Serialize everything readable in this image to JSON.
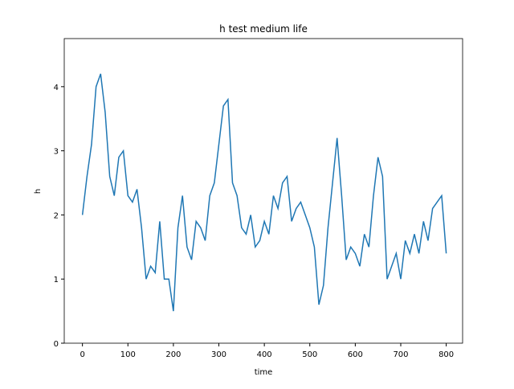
{
  "chart_data": {
    "type": "line",
    "title": "h test medium life",
    "x_label": "time",
    "y_label": "h",
    "x": [
      0,
      10,
      20,
      30,
      40,
      50,
      60,
      70,
      80,
      90,
      100,
      110,
      120,
      130,
      140,
      150,
      160,
      170,
      180,
      190,
      200,
      210,
      220,
      230,
      240,
      250,
      260,
      270,
      280,
      290,
      300,
      310,
      320,
      330,
      340,
      350,
      360,
      370,
      380,
      390,
      400,
      410,
      420,
      430,
      440,
      450,
      460,
      470,
      480,
      490,
      500,
      510,
      520,
      530,
      540,
      550,
      560,
      570,
      580,
      590,
      600,
      610,
      620,
      630,
      640,
      650,
      660,
      670,
      680,
      690,
      700,
      710,
      720,
      730,
      740,
      750,
      760,
      770,
      780,
      790,
      800
    ],
    "series": [
      {
        "name": "h",
        "color": "#1f77b4",
        "values": [
          2.0,
          2.6,
          3.1,
          4.0,
          4.2,
          3.6,
          2.6,
          2.3,
          2.9,
          3.0,
          2.3,
          2.2,
          2.4,
          1.8,
          1.0,
          1.2,
          1.1,
          1.9,
          1.0,
          1.0,
          0.5,
          1.8,
          2.3,
          1.5,
          1.3,
          1.9,
          1.8,
          1.6,
          2.3,
          2.5,
          3.1,
          3.7,
          3.8,
          2.5,
          2.3,
          1.8,
          1.7,
          2.0,
          1.5,
          1.6,
          1.9,
          1.7,
          2.3,
          2.1,
          2.5,
          2.6,
          1.9,
          2.1,
          2.2,
          2.0,
          1.8,
          1.5,
          0.6,
          0.9,
          1.8,
          2.5,
          3.2,
          2.3,
          1.3,
          1.5,
          1.4,
          1.2,
          1.7,
          1.5,
          2.3,
          2.9,
          2.6,
          1.0,
          1.2,
          1.4,
          1.0,
          1.6,
          1.4,
          1.7,
          1.4,
          1.9,
          1.6,
          2.1,
          2.2,
          2.3,
          1.4
        ]
      }
    ],
    "xlim": [
      -40,
      836
    ],
    "ylim": [
      0,
      4.75
    ],
    "xticks": [
      0,
      100,
      200,
      300,
      400,
      500,
      600,
      700,
      800
    ],
    "yticks": [
      0,
      1,
      2,
      3,
      4
    ]
  }
}
